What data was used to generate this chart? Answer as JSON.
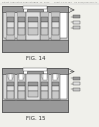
{
  "header_text": "Patent Application Publication",
  "header_date": "Sep. 25, 2012",
  "header_sheet": "Sheet 14 of 184",
  "header_num": "US 2012/0241710 A1",
  "fig14_label": "FIG. 14",
  "fig15_label": "FIG. 15",
  "bg_color": "#f0f0eb",
  "white": "#ffffff",
  "light_gray": "#c8c8c8",
  "mid_gray": "#999999",
  "dark_gray": "#666666",
  "very_light_gray": "#e0e0e0",
  "line_color": "#444444",
  "text_color": "#333333",
  "header_color": "#888888"
}
